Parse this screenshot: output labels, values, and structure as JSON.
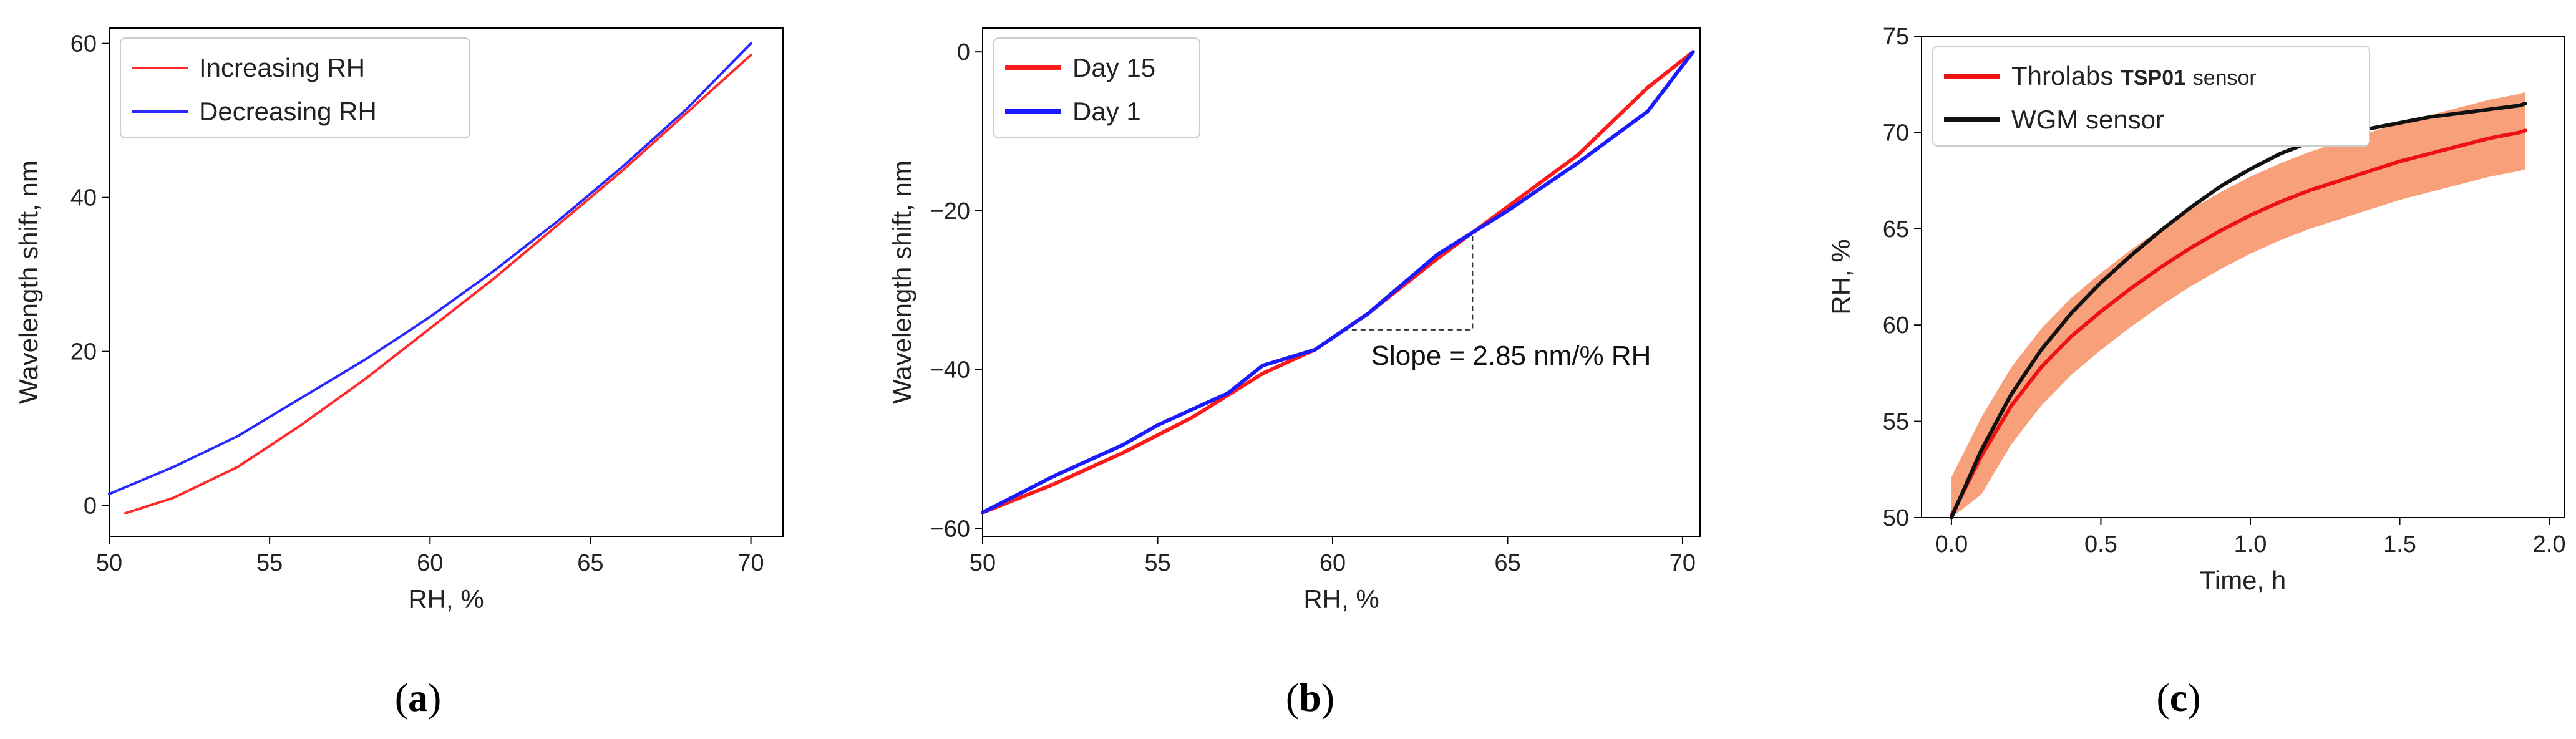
{
  "chart_data": [
    {
      "type": "line",
      "panel_label": "a",
      "title": "",
      "xlabel": "RH, %",
      "ylabel": "Wavelength shift, nm",
      "xlim": [
        50,
        71
      ],
      "ylim": [
        -4,
        62
      ],
      "xticks": [
        50,
        55,
        60,
        65,
        70
      ],
      "yticks": [
        0,
        20,
        40,
        60
      ],
      "legend_position": "top-left",
      "series": [
        {
          "name": "Increasing RH",
          "color": "#ff2a2a",
          "x": [
            50.5,
            52,
            54,
            56,
            58,
            60,
            62,
            64,
            66,
            68,
            70
          ],
          "y": [
            -1,
            1,
            5,
            10.5,
            16.5,
            23,
            29.5,
            36.5,
            43.5,
            51,
            58.5
          ]
        },
        {
          "name": "Decreasing RH",
          "color": "#2a2aff",
          "x": [
            50,
            52,
            54,
            56,
            58,
            60,
            62,
            64,
            66,
            68,
            70
          ],
          "y": [
            1.5,
            5,
            9,
            14,
            19,
            24.5,
            30.5,
            37,
            44,
            51.5,
            60
          ]
        }
      ]
    },
    {
      "type": "line",
      "panel_label": "b",
      "title": "",
      "xlabel": "RH, %",
      "ylabel": "Wavelength shift, nm",
      "xlim": [
        50,
        70.5
      ],
      "ylim": [
        -61,
        3
      ],
      "xticks": [
        50,
        55,
        60,
        65,
        70
      ],
      "yticks": [
        -60,
        -40,
        -20,
        0
      ],
      "legend_position": "top-left",
      "annotation": "Slope = 2.85 nm/% RH",
      "series": [
        {
          "name": "Day 15",
          "color": "#ff1a1a",
          "x": [
            50,
            52,
            54,
            56,
            58,
            59.5,
            61,
            63,
            65,
            67,
            69,
            70.3
          ],
          "y": [
            -58,
            -54.5,
            -50.5,
            -46,
            -40.5,
            -37.5,
            -33,
            -26,
            -19.5,
            -13,
            -4.5,
            0
          ]
        },
        {
          "name": "Day 1",
          "color": "#1a1aff",
          "x": [
            50,
            52,
            54,
            55,
            57,
            58,
            59.5,
            61,
            63,
            65,
            67,
            69,
            70.3
          ],
          "y": [
            -58,
            -53.5,
            -49.5,
            -47,
            -43,
            -39.5,
            -37.5,
            -33,
            -25.5,
            -20,
            -14,
            -7.5,
            0
          ]
        }
      ]
    },
    {
      "type": "line",
      "panel_label": "c",
      "title": "",
      "xlabel": "Time, h",
      "ylabel": "RH, %",
      "xlim": [
        -0.1,
        2.05
      ],
      "ylim": [
        50,
        75
      ],
      "xticks": [
        0.0,
        0.5,
        1.0,
        1.5,
        2.0
      ],
      "xtick_labels": [
        "0.0",
        "0.5",
        "1.0",
        "1.5",
        "2.0"
      ],
      "yticks": [
        50,
        55,
        60,
        65,
        70,
        75
      ],
      "legend_position": "top-left",
      "series": [
        {
          "name": "Throlabs",
          "name_suffix_bold": "TSP01",
          "name_suffix": "sensor",
          "color": "#ee1111",
          "band_color": "#f7a07a",
          "band_half_width": 2,
          "x": [
            0,
            0.1,
            0.2,
            0.3,
            0.4,
            0.5,
            0.6,
            0.7,
            0.8,
            0.9,
            1.0,
            1.1,
            1.2,
            1.3,
            1.4,
            1.5,
            1.6,
            1.7,
            1.8,
            1.9,
            1.92
          ],
          "y": [
            50.1,
            53.2,
            55.8,
            57.8,
            59.4,
            60.7,
            61.9,
            63.0,
            64.0,
            64.9,
            65.7,
            66.4,
            67.0,
            67.5,
            68.0,
            68.5,
            68.9,
            69.3,
            69.7,
            70.0,
            70.1
          ]
        },
        {
          "name": "WGM sensor",
          "color": "#111111",
          "x": [
            0,
            0.1,
            0.2,
            0.3,
            0.4,
            0.5,
            0.6,
            0.7,
            0.8,
            0.9,
            1.0,
            1.1,
            1.2,
            1.3,
            1.4,
            1.5,
            1.6,
            1.7,
            1.8,
            1.9,
            1.92
          ],
          "y": [
            50.0,
            53.5,
            56.4,
            58.7,
            60.6,
            62.2,
            63.6,
            64.9,
            66.1,
            67.2,
            68.1,
            68.9,
            69.5,
            69.9,
            70.2,
            70.5,
            70.8,
            71.0,
            71.2,
            71.4,
            71.5
          ]
        }
      ]
    }
  ]
}
